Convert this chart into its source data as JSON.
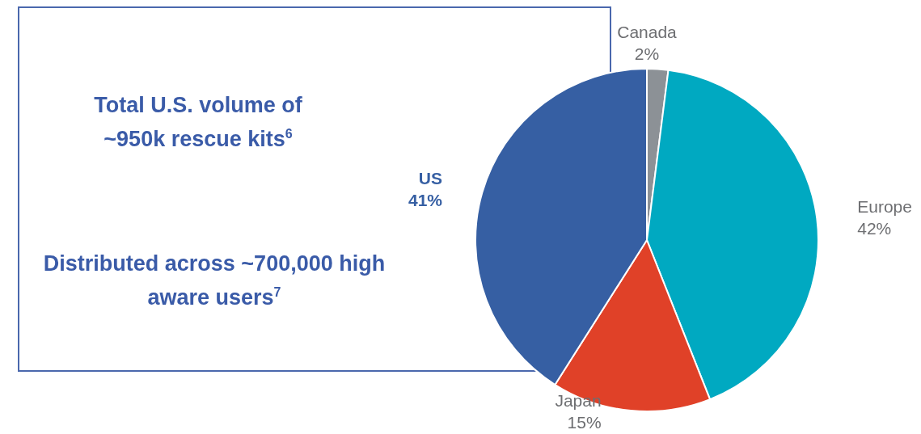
{
  "chart_data": {
    "type": "pie",
    "categories": [
      "Canada",
      "Europe",
      "Japan",
      "US"
    ],
    "values": [
      2,
      42,
      15,
      41
    ],
    "value_labels": [
      "2%",
      "42%",
      "15%",
      "41%"
    ],
    "colors": [
      "#8c9196",
      "#00a9c1",
      "#e04128",
      "#365fa3"
    ],
    "annotations": [
      "Total U.S. volume of ~950k rescue kits$^{6}$",
      "Distributed across ~700,000 high aware users$^{7}$"
    ],
    "legend": false
  }
}
